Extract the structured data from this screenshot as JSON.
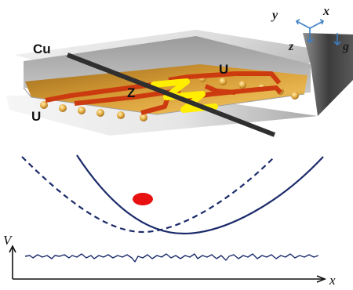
{
  "chip": {
    "label_cu": "Cu",
    "label_z": "Z",
    "label_u_right": "U",
    "label_u_left": "U"
  },
  "axes": {
    "y": "y",
    "x": "x",
    "z": "z",
    "g": "g"
  },
  "plot": {
    "ylabel": "V",
    "xlabel": "x"
  },
  "colors": {
    "wire": "#2f2f2f",
    "copper_trace": "#cc3a10",
    "z_wire": "#ffee00",
    "chip_top": "#c98a2a",
    "potential_curve": "#1b2b6a",
    "particle": "#e81010",
    "axis_arrow": "#3f7fc4"
  }
}
